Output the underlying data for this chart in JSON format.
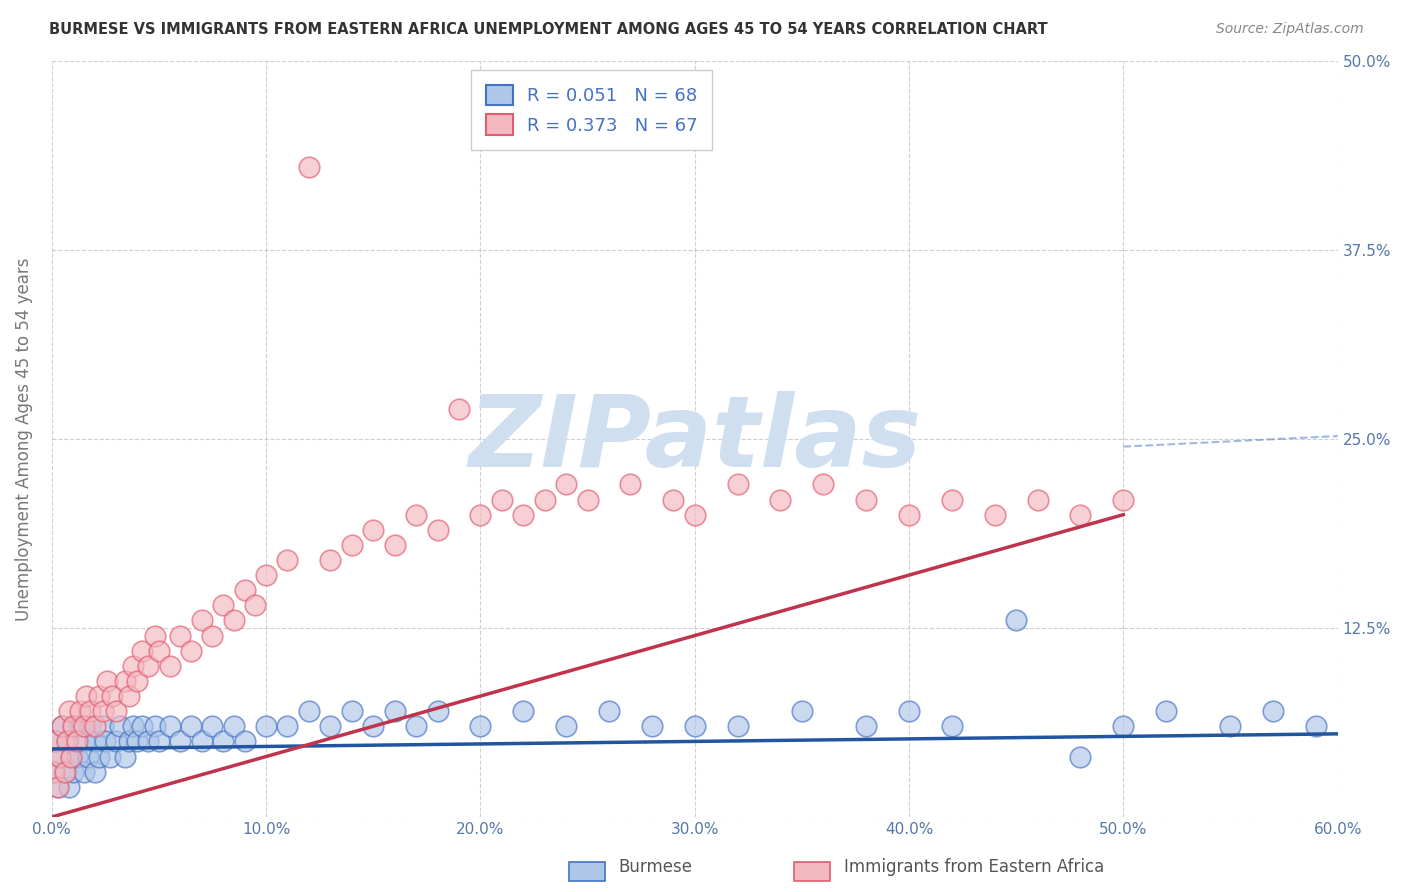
{
  "title": "BURMESE VS IMMIGRANTS FROM EASTERN AFRICA UNEMPLOYMENT AMONG AGES 45 TO 54 YEARS CORRELATION CHART",
  "source": "Source: ZipAtlas.com",
  "ylabel": "Unemployment Among Ages 45 to 54 years",
  "xlim": [
    0.0,
    0.6
  ],
  "ylim": [
    0.0,
    0.5
  ],
  "xticks": [
    0.0,
    0.1,
    0.2,
    0.3,
    0.4,
    0.5,
    0.6
  ],
  "yticks": [
    0.0,
    0.125,
    0.25,
    0.375,
    0.5
  ],
  "xtick_labels": [
    "0.0%",
    "10.0%",
    "20.0%",
    "30.0%",
    "40.0%",
    "50.0%",
    "60.0%"
  ],
  "ytick_labels": [
    "",
    "12.5%",
    "25.0%",
    "37.5%",
    "50.0%"
  ],
  "blue_R": 0.051,
  "blue_N": 68,
  "pink_R": 0.373,
  "pink_N": 67,
  "blue_color": "#aec6e8",
  "blue_edge_color": "#4472c4",
  "pink_color": "#f4b8c1",
  "pink_edge_color": "#e05c6e",
  "blue_line_color": "#2155a0",
  "pink_line_color": "#c0334d",
  "watermark": "ZIPatlas",
  "watermark_color": "#d0dff0",
  "bg_color": "#ffffff",
  "grid_color": "#bbbbbb",
  "legend_text_color": "#4472c4",
  "legend_labels": [
    "Burmese",
    "Immigrants from Eastern Africa"
  ],
  "blue_scatter_x": [
    0.001,
    0.002,
    0.003,
    0.004,
    0.005,
    0.006,
    0.007,
    0.008,
    0.009,
    0.01,
    0.01,
    0.012,
    0.013,
    0.015,
    0.015,
    0.017,
    0.018,
    0.02,
    0.02,
    0.022,
    0.024,
    0.025,
    0.027,
    0.03,
    0.032,
    0.034,
    0.036,
    0.038,
    0.04,
    0.042,
    0.045,
    0.048,
    0.05,
    0.055,
    0.06,
    0.065,
    0.07,
    0.075,
    0.08,
    0.085,
    0.09,
    0.1,
    0.11,
    0.12,
    0.13,
    0.14,
    0.15,
    0.16,
    0.17,
    0.18,
    0.2,
    0.22,
    0.24,
    0.26,
    0.28,
    0.3,
    0.32,
    0.35,
    0.38,
    0.4,
    0.42,
    0.45,
    0.48,
    0.5,
    0.52,
    0.55,
    0.57,
    0.59
  ],
  "blue_scatter_y": [
    0.03,
    0.05,
    0.02,
    0.04,
    0.06,
    0.03,
    0.05,
    0.02,
    0.04,
    0.06,
    0.03,
    0.04,
    0.06,
    0.05,
    0.03,
    0.04,
    0.06,
    0.05,
    0.03,
    0.04,
    0.06,
    0.05,
    0.04,
    0.05,
    0.06,
    0.04,
    0.05,
    0.06,
    0.05,
    0.06,
    0.05,
    0.06,
    0.05,
    0.06,
    0.05,
    0.06,
    0.05,
    0.06,
    0.05,
    0.06,
    0.05,
    0.06,
    0.06,
    0.07,
    0.06,
    0.07,
    0.06,
    0.07,
    0.06,
    0.07,
    0.06,
    0.07,
    0.06,
    0.07,
    0.06,
    0.06,
    0.06,
    0.07,
    0.06,
    0.07,
    0.06,
    0.13,
    0.04,
    0.06,
    0.07,
    0.06,
    0.07,
    0.06
  ],
  "pink_scatter_x": [
    0.001,
    0.002,
    0.003,
    0.004,
    0.005,
    0.006,
    0.007,
    0.008,
    0.009,
    0.01,
    0.012,
    0.013,
    0.015,
    0.016,
    0.018,
    0.02,
    0.022,
    0.024,
    0.026,
    0.028,
    0.03,
    0.034,
    0.036,
    0.038,
    0.04,
    0.042,
    0.045,
    0.048,
    0.05,
    0.055,
    0.06,
    0.065,
    0.07,
    0.075,
    0.08,
    0.085,
    0.09,
    0.095,
    0.1,
    0.11,
    0.12,
    0.13,
    0.14,
    0.15,
    0.16,
    0.17,
    0.18,
    0.19,
    0.2,
    0.21,
    0.22,
    0.23,
    0.24,
    0.25,
    0.27,
    0.29,
    0.3,
    0.32,
    0.34,
    0.36,
    0.38,
    0.4,
    0.42,
    0.44,
    0.46,
    0.48,
    0.5
  ],
  "pink_scatter_y": [
    0.03,
    0.05,
    0.02,
    0.04,
    0.06,
    0.03,
    0.05,
    0.07,
    0.04,
    0.06,
    0.05,
    0.07,
    0.06,
    0.08,
    0.07,
    0.06,
    0.08,
    0.07,
    0.09,
    0.08,
    0.07,
    0.09,
    0.08,
    0.1,
    0.09,
    0.11,
    0.1,
    0.12,
    0.11,
    0.1,
    0.12,
    0.11,
    0.13,
    0.12,
    0.14,
    0.13,
    0.15,
    0.14,
    0.16,
    0.17,
    0.43,
    0.17,
    0.18,
    0.19,
    0.18,
    0.2,
    0.19,
    0.27,
    0.2,
    0.21,
    0.2,
    0.21,
    0.22,
    0.21,
    0.22,
    0.21,
    0.2,
    0.22,
    0.21,
    0.22,
    0.21,
    0.2,
    0.21,
    0.2,
    0.21,
    0.2,
    0.21
  ],
  "blue_trend_x": [
    0.0,
    0.6
  ],
  "blue_trend_y": [
    0.045,
    0.055
  ],
  "pink_trend_x": [
    0.0,
    0.5
  ],
  "pink_trend_y": [
    0.0,
    0.2
  ]
}
